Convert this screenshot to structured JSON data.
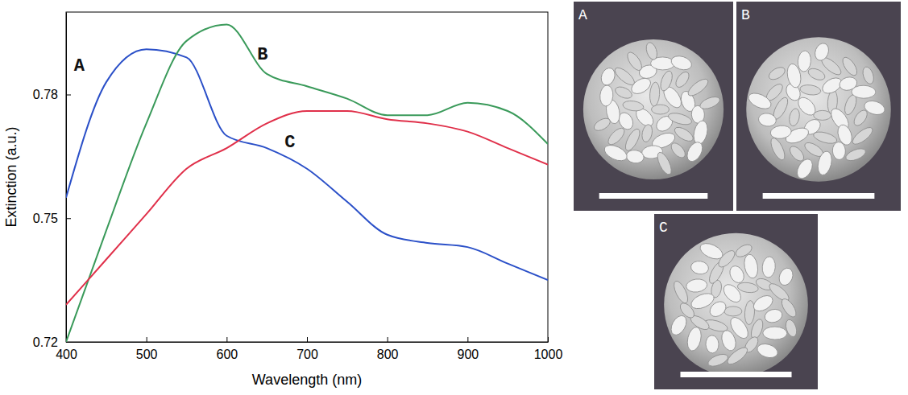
{
  "chart_data": {
    "type": "line",
    "x_label": "Wavelength (nm)",
    "y_label": "Extinction (a.u.)",
    "x": [
      400,
      450,
      500,
      550,
      600,
      650,
      700,
      750,
      800,
      850,
      900,
      950,
      1000
    ],
    "series": [
      {
        "name": "A",
        "color": "#2b50c8",
        "values": [
          0.755,
          0.783,
          0.791,
          0.789,
          0.77,
          0.767,
          0.762,
          0.754,
          0.746,
          0.744,
          0.743,
          0.739,
          0.735
        ]
      },
      {
        "name": "B",
        "color": "#3a9a5a",
        "values": [
          0.72,
          0.747,
          0.773,
          0.793,
          0.797,
          0.785,
          0.782,
          0.779,
          0.775,
          0.775,
          0.778,
          0.776,
          0.768
        ]
      },
      {
        "name": "C",
        "color": "#e0304a",
        "values": [
          0.729,
          0.74,
          0.751,
          0.762,
          0.767,
          0.773,
          0.776,
          0.776,
          0.774,
          0.773,
          0.771,
          0.767,
          0.763
        ]
      }
    ],
    "xlim": [
      400,
      1000
    ],
    "xticks": [
      400,
      500,
      600,
      700,
      800,
      900,
      1000
    ],
    "ylim": [
      0.72,
      0.8
    ],
    "yticks": [
      0.72,
      0.75,
      0.78
    ],
    "grid": false
  },
  "images": {
    "panels": [
      "A",
      "B",
      "C"
    ]
  }
}
